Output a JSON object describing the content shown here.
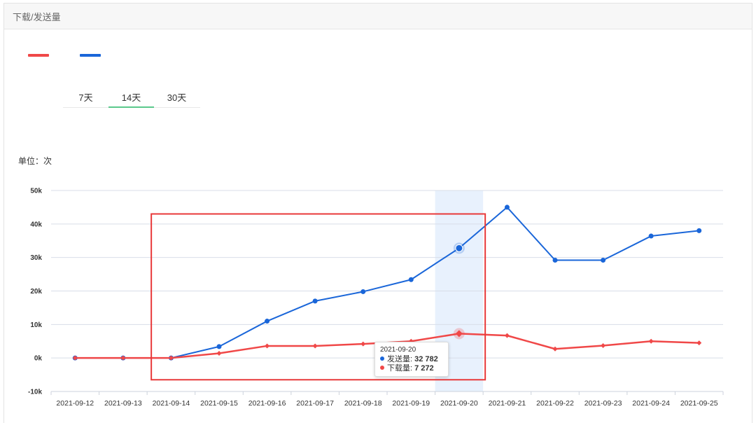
{
  "panel": {
    "title": "下载/发送量"
  },
  "legend": [
    {
      "color": "#f04848"
    },
    {
      "color": "#1a66d9"
    }
  ],
  "tabs": [
    {
      "label": "7天",
      "active": false
    },
    {
      "label": "14天",
      "active": true
    },
    {
      "label": "30天",
      "active": false
    }
  ],
  "unit_label": "单位：次",
  "tooltip": {
    "date": "2021-09-20",
    "rows": [
      {
        "name": "发送量",
        "value": "32 782",
        "color": "#1a66d9"
      },
      {
        "name": "下载量",
        "value": "7 272",
        "color": "#f04848"
      }
    ]
  },
  "chart_data": {
    "type": "line",
    "categories": [
      "2021-09-12",
      "2021-09-13",
      "2021-09-14",
      "2021-09-15",
      "2021-09-16",
      "2021-09-17",
      "2021-09-18",
      "2021-09-19",
      "2021-09-20",
      "2021-09-21",
      "2021-09-22",
      "2021-09-23",
      "2021-09-24",
      "2021-09-25"
    ],
    "series": [
      {
        "name": "发送量",
        "color": "#1a66d9",
        "marker": "circle",
        "values": [
          0,
          0,
          0,
          3400,
          11000,
          17000,
          19800,
          23400,
          32782,
          45000,
          29200,
          29200,
          36400,
          38000
        ]
      },
      {
        "name": "下载量",
        "color": "#f04848",
        "marker": "diamond",
        "values": [
          0,
          0,
          0,
          1400,
          3600,
          3600,
          4200,
          5000,
          7272,
          6700,
          2700,
          3700,
          5000,
          4500
        ]
      }
    ],
    "ylim": [
      -10000,
      50000
    ],
    "yticks": [
      -10000,
      0,
      10000,
      20000,
      30000,
      40000,
      50000
    ],
    "ytick_labels": [
      "-10k",
      "0k",
      "10k",
      "20k",
      "30k",
      "40k",
      "50k"
    ],
    "highlight_index": 8,
    "grid": true,
    "annotation": {
      "type": "box",
      "color": "#e8393a",
      "from": "2021-09-14",
      "to": "2021-09-20"
    }
  }
}
